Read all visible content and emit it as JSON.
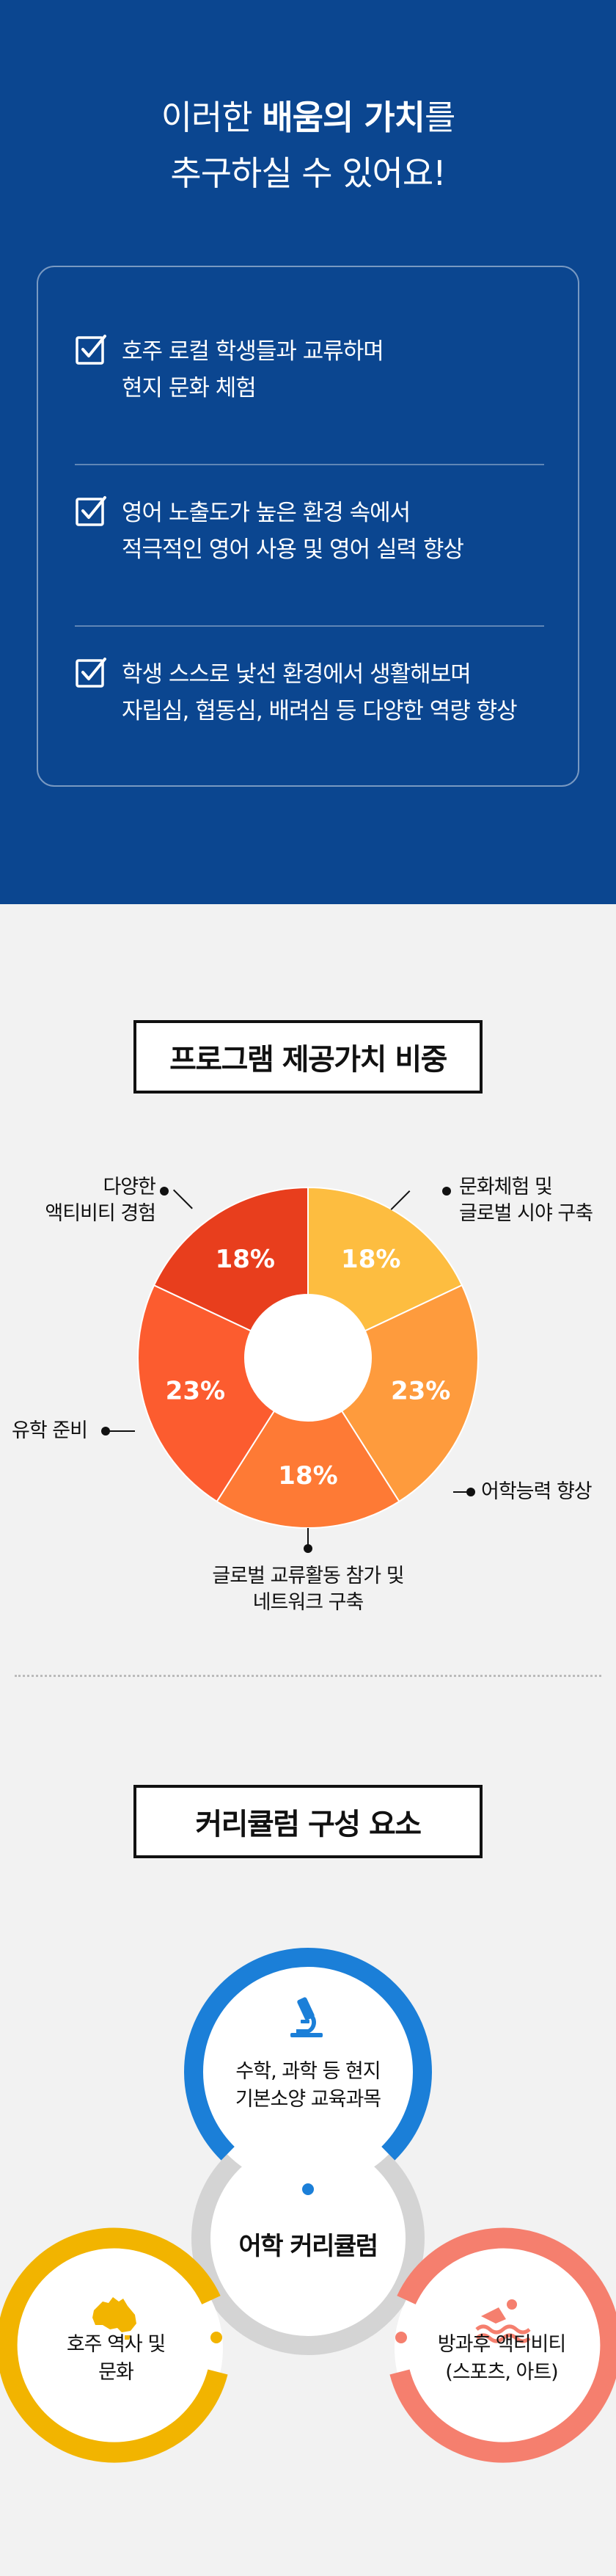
{
  "hero": {
    "title_line1_pre": "이러한 ",
    "title_line1_bold": "배움의 가치",
    "title_line1_post": "를",
    "title_line2": "추구하실 수 있어요!",
    "values": [
      {
        "line1": "호주 로컬 학생들과 교류하며",
        "line2": "현지 문화 체험"
      },
      {
        "line1": "영어 노출도가 높은 환경 속에서",
        "line2": "적극적인 영어 사용 및 영어 실력 향상"
      },
      {
        "line1": "학생 스스로 낯선 환경에서 생활해보며",
        "line2": "자립심, 협동심, 배려심 등 다양한 역량 향상"
      }
    ]
  },
  "program": {
    "title": "프로그램 제공가치 비중",
    "labels": {
      "culture": [
        "문화체험 및",
        "글로벌 시야 구축"
      ],
      "language": [
        "어학능력 향상"
      ],
      "network": [
        "글로벌 교류활동 참가 및",
        "네트워크 구축"
      ],
      "study": [
        "유학 준비"
      ],
      "activity": [
        "다양한",
        "액티비티 경험"
      ]
    }
  },
  "chart_data": {
    "type": "pie",
    "title": "프로그램 제공가치 비중",
    "categories": [
      "문화체험 및 글로벌 시야 구축",
      "어학능력 향상",
      "글로벌 교류활동 참가 및 네트워크 구축",
      "유학 준비",
      "다양한 액티비티 경험"
    ],
    "values": [
      18,
      23,
      18,
      23,
      18
    ],
    "value_labels": [
      "18%",
      "23%",
      "18%",
      "23%",
      "18%"
    ],
    "colors": [
      "#fdbd40",
      "#fe9b3d",
      "#fe7a35",
      "#fc5c2f",
      "#e83e1d"
    ]
  },
  "curriculum": {
    "title": "커리큘럼 구성 요소",
    "center": "어학 커리큘럼",
    "top": {
      "line1": "수학, 과학 등 현지",
      "line2": "기본소양 교육과목",
      "icon": "microscope-icon",
      "color": "#1b7fd8"
    },
    "left": {
      "line1": "호주 역사 및",
      "line2": "문화",
      "icon": "australia-map-icon",
      "color": "#f2b400"
    },
    "right": {
      "line1": "방과후 액티비티",
      "line2": "(스포츠, 아트)",
      "icon": "swimmer-icon",
      "color": "#f57f6e"
    },
    "ring_color": "#d4d4d4"
  }
}
